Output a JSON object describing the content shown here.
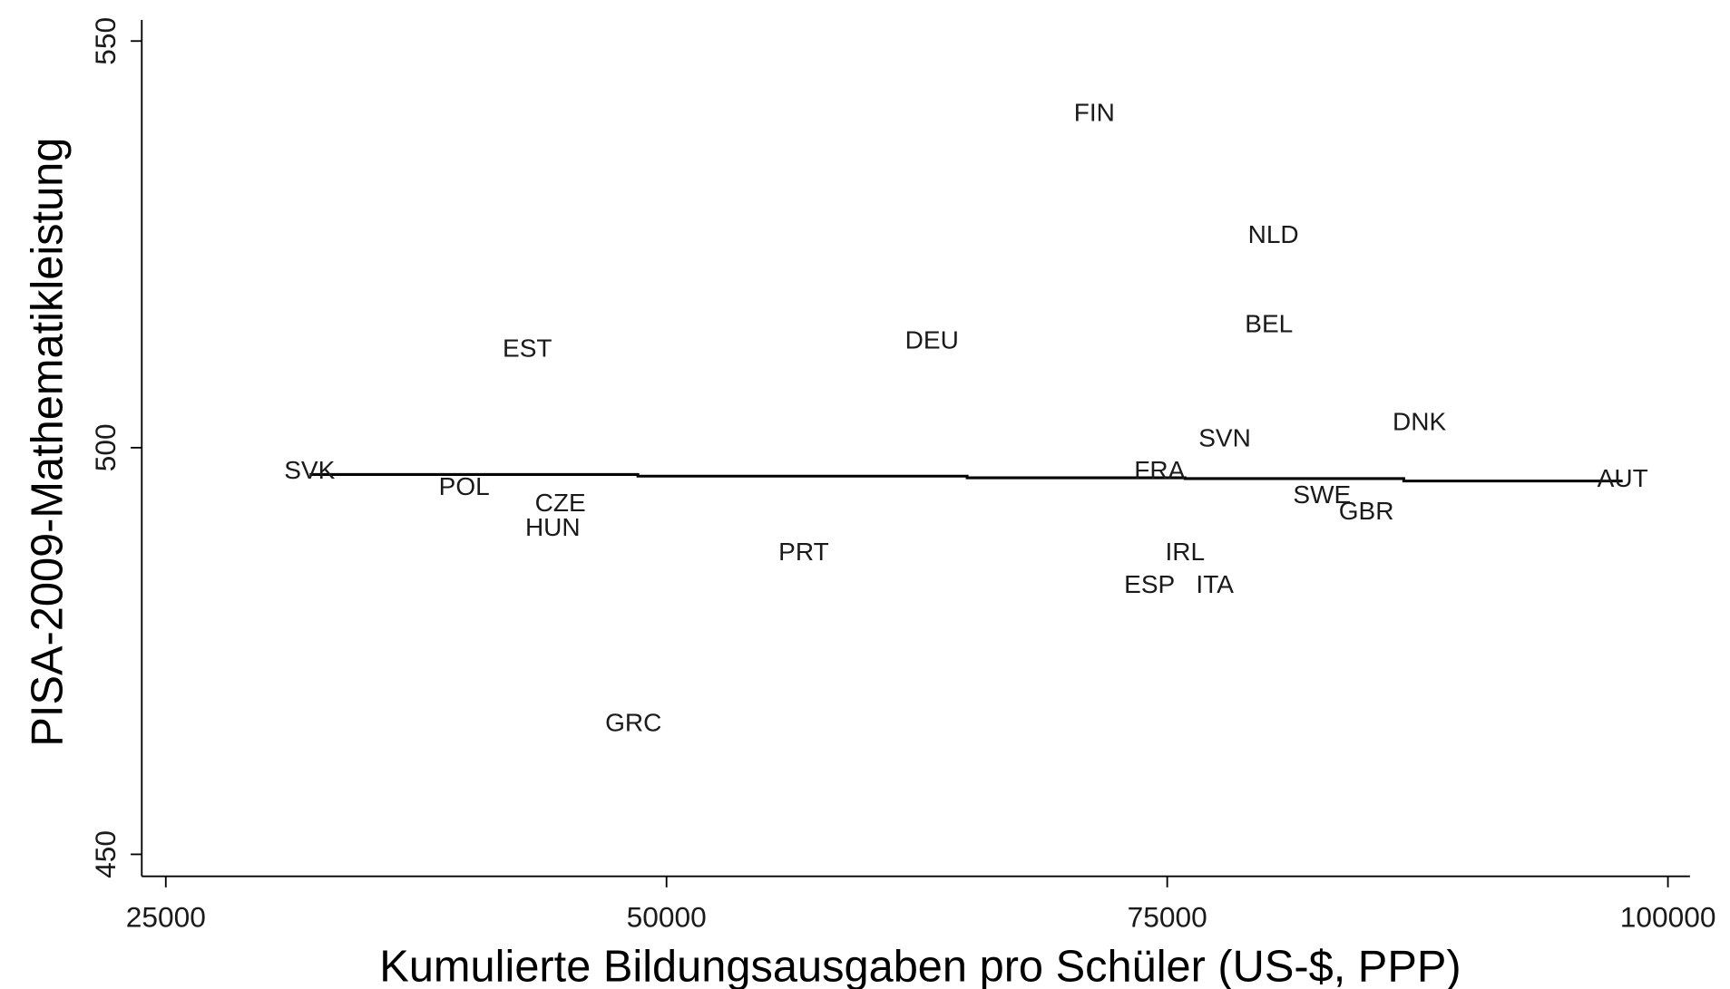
{
  "chart_data": {
    "type": "scatter",
    "x_label": "Kumulierte Bildungsausgaben pro Schüler (US-$, PPP)",
    "y_label": "PISA-2009-Mathematikleistung",
    "labels": [
      "FIN",
      "NLD",
      "BEL",
      "DEU",
      "EST",
      "DNK",
      "SVN",
      "SVK",
      "FRA",
      "AUT",
      "POL",
      "SWE",
      "CZE",
      "GBR",
      "HUN",
      "PRT",
      "IRL",
      "ESP",
      "ITA",
      "GRC"
    ],
    "x": [
      71360,
      80300,
      80080,
      63250,
      43050,
      87590,
      77870,
      32180,
      74620,
      97740,
      39900,
      82730,
      44700,
      84940,
      44320,
      56850,
      75890,
      74120,
      77380,
      48350
    ],
    "values": [
      541,
      526,
      515,
      513,
      512,
      503,
      501,
      497,
      497,
      496,
      495,
      494,
      493,
      492,
      490,
      487,
      487,
      483,
      483,
      466
    ],
    "fit_line": {
      "color": "#000000",
      "x": [
        32180,
        48570,
        48570,
        65010,
        65010,
        75890,
        75890,
        86810,
        86810,
        97740
      ],
      "y": [
        496.7,
        496.7,
        496.5,
        496.5,
        496.3,
        496.3,
        496.2,
        496.2,
        495.9,
        495.9
      ]
    },
    "xlim": [
      23800,
      101100
    ],
    "ylim": [
      447.3,
      552.6
    ],
    "xticks": [
      25000,
      50000,
      75000,
      100000
    ],
    "yticks": [
      450,
      500,
      550
    ]
  }
}
